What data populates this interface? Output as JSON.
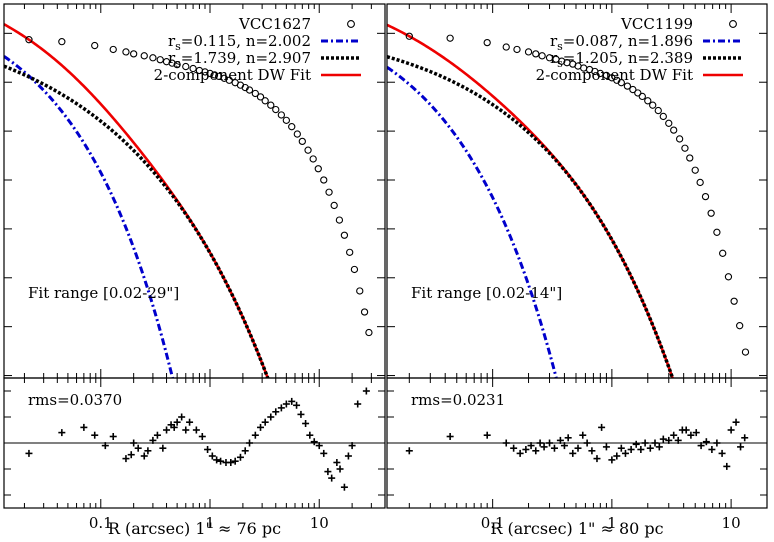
{
  "chart_data": [
    {
      "type": "scatter",
      "object": "VCC1627",
      "xscale": "log",
      "xlim": [
        0.013,
        40
      ],
      "xticks": [
        {
          "v": 0.1,
          "label": "0.1"
        },
        {
          "v": 1,
          "label": "1"
        },
        {
          "v": 10,
          "label": "10"
        }
      ],
      "xlabel": "R (arcsec)  1\" ≈  76 pc",
      "annotation": "Fit range [0.02-29\"]",
      "rms_label": "rms=0.0370",
      "legend": [
        {
          "label": "VCC1627",
          "style": "circle"
        },
        {
          "label": "r_s=0.115, n=2.002",
          "style": "dashdot",
          "color": "#0000cc"
        },
        {
          "label": "r_s=1.739, n=2.907",
          "style": "dotted",
          "color": "#000000"
        },
        {
          "label": "2-component DW Fit",
          "style": "solid",
          "color": "#ee0000"
        }
      ],
      "components": [
        {
          "rs": 0.115,
          "n": 2.002,
          "x_cutoff": 1.95
        },
        {
          "rs": 1.739,
          "n": 2.907,
          "x_cutoff": 40
        }
      ],
      "profile_points": [
        [
          0.022,
          0.13
        ],
        [
          0.044,
          0.17
        ],
        [
          0.088,
          0.25
        ],
        [
          0.13,
          0.33
        ],
        [
          0.17,
          0.38
        ],
        [
          0.2,
          0.42
        ],
        [
          0.25,
          0.46
        ],
        [
          0.3,
          0.5
        ],
        [
          0.35,
          0.54
        ],
        [
          0.4,
          0.58
        ],
        [
          0.45,
          0.61
        ],
        [
          0.5,
          0.64
        ],
        [
          0.6,
          0.68
        ],
        [
          0.7,
          0.72
        ],
        [
          0.8,
          0.76
        ],
        [
          0.9,
          0.79
        ],
        [
          1.0,
          0.82
        ],
        [
          1.1,
          0.85
        ],
        [
          1.2,
          0.88
        ],
        [
          1.35,
          0.92
        ],
        [
          1.5,
          0.96
        ],
        [
          1.7,
          1.01
        ],
        [
          1.9,
          1.06
        ],
        [
          2.1,
          1.11
        ],
        [
          2.3,
          1.16
        ],
        [
          2.6,
          1.23
        ],
        [
          2.9,
          1.3
        ],
        [
          3.2,
          1.38
        ],
        [
          3.6,
          1.47
        ],
        [
          4.0,
          1.56
        ],
        [
          4.5,
          1.67
        ],
        [
          5.0,
          1.78
        ],
        [
          5.6,
          1.91
        ],
        [
          6.3,
          2.06
        ],
        [
          7.0,
          2.21
        ],
        [
          7.9,
          2.39
        ],
        [
          8.8,
          2.57
        ],
        [
          9.8,
          2.77
        ],
        [
          11,
          3.0
        ],
        [
          12.3,
          3.25
        ],
        [
          13.7,
          3.52
        ],
        [
          15.3,
          3.82
        ],
        [
          17,
          4.13
        ],
        [
          19,
          4.48
        ],
        [
          21,
          4.83
        ],
        [
          23.5,
          5.27
        ],
        [
          26,
          5.7
        ],
        [
          28.5,
          6.12
        ]
      ],
      "residuals": [
        [
          0.022,
          -0.008
        ],
        [
          0.044,
          0.008
        ],
        [
          0.07,
          0.012
        ],
        [
          0.088,
          0.006
        ],
        [
          0.11,
          -0.002
        ],
        [
          0.13,
          0.005
        ],
        [
          0.17,
          -0.012
        ],
        [
          0.19,
          -0.009
        ],
        [
          0.2,
          0.0
        ],
        [
          0.22,
          -0.004
        ],
        [
          0.25,
          -0.01
        ],
        [
          0.27,
          -0.006
        ],
        [
          0.3,
          0.002
        ],
        [
          0.33,
          0.006
        ],
        [
          0.37,
          -0.004
        ],
        [
          0.4,
          0.01
        ],
        [
          0.44,
          0.014
        ],
        [
          0.47,
          0.012
        ],
        [
          0.5,
          0.016
        ],
        [
          0.55,
          0.02
        ],
        [
          0.6,
          0.01
        ],
        [
          0.65,
          0.016
        ],
        [
          0.75,
          0.01
        ],
        [
          0.85,
          0.005
        ],
        [
          0.95,
          -0.005
        ],
        [
          1.05,
          -0.01
        ],
        [
          1.15,
          -0.013
        ],
        [
          1.25,
          -0.014
        ],
        [
          1.4,
          -0.015
        ],
        [
          1.55,
          -0.015
        ],
        [
          1.7,
          -0.014
        ],
        [
          1.9,
          -0.011
        ],
        [
          2.1,
          -0.006
        ],
        [
          2.3,
          0.0
        ],
        [
          2.6,
          0.006
        ],
        [
          2.9,
          0.012
        ],
        [
          3.2,
          0.016
        ],
        [
          3.6,
          0.02
        ],
        [
          4.0,
          0.024
        ],
        [
          4.5,
          0.027
        ],
        [
          5.0,
          0.03
        ],
        [
          5.6,
          0.032
        ],
        [
          6.2,
          0.029
        ],
        [
          6.8,
          0.022
        ],
        [
          7.5,
          0.015
        ],
        [
          8.2,
          0.006
        ],
        [
          9.0,
          0.001
        ],
        [
          10,
          -0.002
        ],
        [
          11,
          -0.008
        ],
        [
          12,
          -0.022
        ],
        [
          13,
          -0.027
        ],
        [
          14.5,
          -0.015
        ],
        [
          15.5,
          -0.02
        ],
        [
          17,
          -0.034
        ],
        [
          18.5,
          -0.01
        ],
        [
          20,
          -0.002
        ],
        [
          22.5,
          0.03
        ],
        [
          27,
          0.04
        ]
      ]
    },
    {
      "type": "scatter",
      "object": "VCC1199",
      "xscale": "log",
      "xlim": [
        0.013,
        20
      ],
      "xticks": [
        {
          "v": 0.1,
          "label": "0.1"
        },
        {
          "v": 1,
          "label": "1"
        },
        {
          "v": 10,
          "label": "10"
        }
      ],
      "xlabel": "R (arcsec)  1\" ≈  80 pc",
      "annotation": "Fit range [0.02-14\"]",
      "rms_label": "rms=0.0231",
      "legend": [
        {
          "label": "VCC1199",
          "style": "circle"
        },
        {
          "label": "r_s=0.087, n=1.896",
          "style": "dashdot",
          "color": "#0000cc"
        },
        {
          "label": "r_s=1.205, n=2.389",
          "style": "dotted",
          "color": "#000000"
        },
        {
          "label": "2-component DW Fit",
          "style": "solid",
          "color": "#ee0000"
        }
      ],
      "components": [
        {
          "rs": 0.087,
          "n": 1.896,
          "x_cutoff": 1.45
        },
        {
          "rs": 1.205,
          "n": 2.389,
          "x_cutoff": 20
        }
      ],
      "profile_points": [
        [
          0.02,
          0.06
        ],
        [
          0.044,
          0.1
        ],
        [
          0.09,
          0.19
        ],
        [
          0.13,
          0.28
        ],
        [
          0.16,
          0.33
        ],
        [
          0.2,
          0.38
        ],
        [
          0.23,
          0.42
        ],
        [
          0.26,
          0.46
        ],
        [
          0.3,
          0.5
        ],
        [
          0.34,
          0.53
        ],
        [
          0.38,
          0.57
        ],
        [
          0.42,
          0.6
        ],
        [
          0.47,
          0.63
        ],
        [
          0.52,
          0.67
        ],
        [
          0.58,
          0.71
        ],
        [
          0.65,
          0.74
        ],
        [
          0.72,
          0.78
        ],
        [
          0.8,
          0.82
        ],
        [
          0.9,
          0.86
        ],
        [
          1.0,
          0.91
        ],
        [
          1.1,
          0.96
        ],
        [
          1.2,
          1.01
        ],
        [
          1.35,
          1.08
        ],
        [
          1.5,
          1.15
        ],
        [
          1.65,
          1.22
        ],
        [
          1.8,
          1.29
        ],
        [
          2.0,
          1.38
        ],
        [
          2.2,
          1.47
        ],
        [
          2.45,
          1.58
        ],
        [
          2.7,
          1.7
        ],
        [
          3.0,
          1.84
        ],
        [
          3.3,
          1.98
        ],
        [
          3.7,
          2.16
        ],
        [
          4.1,
          2.35
        ],
        [
          4.5,
          2.55
        ],
        [
          5.0,
          2.8
        ],
        [
          5.5,
          3.05
        ],
        [
          6.1,
          3.34
        ],
        [
          6.8,
          3.68
        ],
        [
          7.6,
          4.07
        ],
        [
          8.5,
          4.5
        ],
        [
          9.5,
          4.98
        ],
        [
          10.6,
          5.48
        ],
        [
          11.8,
          5.98
        ],
        [
          13.2,
          6.52
        ]
      ],
      "residuals": [
        [
          0.02,
          -0.006
        ],
        [
          0.044,
          0.005
        ],
        [
          0.09,
          0.006
        ],
        [
          0.13,
          0.0
        ],
        [
          0.15,
          -0.004
        ],
        [
          0.17,
          -0.008
        ],
        [
          0.19,
          -0.005
        ],
        [
          0.21,
          -0.002
        ],
        [
          0.23,
          -0.006
        ],
        [
          0.25,
          0.0
        ],
        [
          0.27,
          -0.003
        ],
        [
          0.3,
          0.0
        ],
        [
          0.33,
          -0.004
        ],
        [
          0.37,
          0.002
        ],
        [
          0.4,
          -0.002
        ],
        [
          0.43,
          0.004
        ],
        [
          0.47,
          -0.008
        ],
        [
          0.52,
          -0.004
        ],
        [
          0.57,
          0.006
        ],
        [
          0.62,
          0.0
        ],
        [
          0.68,
          -0.006
        ],
        [
          0.75,
          -0.012
        ],
        [
          0.82,
          0.012
        ],
        [
          0.9,
          -0.003
        ],
        [
          1.0,
          -0.013
        ],
        [
          1.1,
          -0.01
        ],
        [
          1.2,
          -0.004
        ],
        [
          1.3,
          -0.008
        ],
        [
          1.45,
          -0.005
        ],
        [
          1.6,
          -0.001
        ],
        [
          1.75,
          -0.005
        ],
        [
          1.9,
          0.0
        ],
        [
          2.1,
          -0.004
        ],
        [
          2.3,
          0.0
        ],
        [
          2.5,
          -0.003
        ],
        [
          2.7,
          0.003
        ],
        [
          3.0,
          0.002
        ],
        [
          3.3,
          0.006
        ],
        [
          3.6,
          0.002
        ],
        [
          3.9,
          0.01
        ],
        [
          4.2,
          0.01
        ],
        [
          4.6,
          0.006
        ],
        [
          5.1,
          0.008
        ],
        [
          5.6,
          -0.002
        ],
        [
          6.2,
          0.001
        ],
        [
          6.9,
          -0.005
        ],
        [
          7.6,
          0.0
        ],
        [
          8.4,
          -0.008
        ],
        [
          9.2,
          -0.018
        ],
        [
          10,
          0.01
        ],
        [
          11,
          0.016
        ],
        [
          12,
          -0.003
        ],
        [
          13,
          0.004
        ]
      ]
    }
  ]
}
